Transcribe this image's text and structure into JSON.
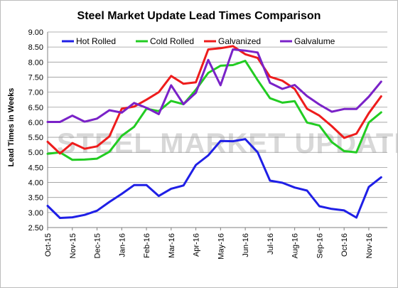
{
  "chart_data": {
    "type": "line",
    "title": "Steel Market Update Lead Times Comparison",
    "ylabel": "Lead Times in Weeks",
    "xlabel": "",
    "ylim": [
      2.5,
      9.0
    ],
    "yticks": [
      "2.50",
      "3.00",
      "3.50",
      "4.00",
      "4.50",
      "5.00",
      "5.50",
      "6.00",
      "6.50",
      "7.00",
      "7.50",
      "8.00",
      "8.50",
      "9.00"
    ],
    "x_tick_labels": [
      "Oct-15",
      "Nov-15",
      "Dec-15",
      "Jan-16",
      "Feb-16",
      "Mar-16",
      "Apr-16",
      "May-16",
      "Jun-16",
      "Jul-16",
      "Aug-16",
      "Sep-16",
      "Oct-16",
      "Nov-16"
    ],
    "points_per_month": 2,
    "legend_position": "top",
    "grid": "horizontal",
    "watermark": "STEEL MARKET UPDATE",
    "series": [
      {
        "name": "Hot Rolled",
        "color": "#1f1fe6",
        "values": [
          3.22,
          2.82,
          2.84,
          2.92,
          3.06,
          3.35,
          3.62,
          3.91,
          3.91,
          3.55,
          3.79,
          3.9,
          4.58,
          4.9,
          5.38,
          5.37,
          5.44,
          5.0,
          4.06,
          3.99,
          3.83,
          3.73,
          3.21,
          3.12,
          3.07,
          2.83,
          3.85,
          4.17
        ]
      },
      {
        "name": "Cold Rolled",
        "color": "#22cc22",
        "values": [
          4.95,
          5.0,
          4.75,
          4.76,
          4.79,
          5.02,
          5.55,
          5.85,
          6.45,
          6.37,
          6.71,
          6.6,
          7.08,
          7.64,
          7.88,
          7.9,
          8.04,
          7.4,
          6.8,
          6.65,
          6.7,
          5.99,
          5.89,
          5.34,
          5.04,
          5.0,
          5.99,
          6.33
        ]
      },
      {
        "name": "Galvanized",
        "color": "#ee1c1c",
        "values": [
          5.35,
          4.96,
          5.31,
          5.12,
          5.2,
          5.53,
          6.45,
          6.52,
          6.75,
          7.0,
          7.54,
          7.28,
          7.33,
          8.42,
          8.46,
          8.53,
          8.26,
          8.14,
          7.51,
          7.38,
          7.11,
          6.45,
          6.22,
          5.87,
          5.48,
          5.62,
          6.3,
          6.86
        ]
      },
      {
        "name": "Galvalume",
        "color": "#7a22c8",
        "values": [
          6.01,
          6.01,
          6.22,
          6.02,
          6.12,
          6.4,
          6.32,
          6.64,
          6.48,
          6.27,
          7.23,
          6.6,
          6.98,
          8.07,
          7.23,
          8.42,
          8.38,
          8.32,
          7.31,
          7.11,
          7.24,
          6.87,
          6.59,
          6.35,
          6.44,
          6.44,
          6.85,
          7.35
        ]
      }
    ]
  }
}
